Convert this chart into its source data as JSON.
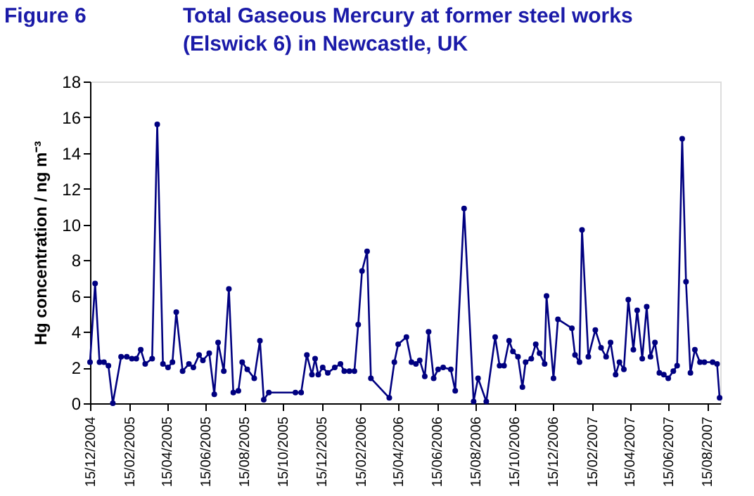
{
  "chart_data": {
    "type": "line",
    "title": "Total Gaseous Mercury at former steel works\n(Elswick 6) in Newcastle, UK",
    "annotations": [
      "Figure 6"
    ],
    "ylabel": "Hg concentration / ng m⁻³",
    "marker": "circle",
    "line_style": "solid",
    "grid": false,
    "legend": false,
    "xlim": [
      "2004-12-15",
      "2007-09-05"
    ],
    "xticks": [
      {
        "value": "2004-12-15",
        "label": "15/12/2004"
      },
      {
        "value": "2005-02-15",
        "label": "15/02/2005"
      },
      {
        "value": "2005-04-15",
        "label": "15/04/2005"
      },
      {
        "value": "2005-06-15",
        "label": "15/06/2005"
      },
      {
        "value": "2005-08-15",
        "label": "15/08/2005"
      },
      {
        "value": "2005-10-15",
        "label": "15/10/2005"
      },
      {
        "value": "2005-12-15",
        "label": "15/12/2005"
      },
      {
        "value": "2006-02-15",
        "label": "15/02/2006"
      },
      {
        "value": "2006-04-15",
        "label": "15/04/2006"
      },
      {
        "value": "2006-06-15",
        "label": "15/06/2006"
      },
      {
        "value": "2006-08-15",
        "label": "15/08/2006"
      },
      {
        "value": "2006-10-15",
        "label": "15/10/2006"
      },
      {
        "value": "2006-12-15",
        "label": "15/12/2006"
      },
      {
        "value": "2007-02-15",
        "label": "15/02/2007"
      },
      {
        "value": "2007-04-15",
        "label": "15/04/2007"
      },
      {
        "value": "2007-06-15",
        "label": "15/06/2007"
      },
      {
        "value": "2007-08-15",
        "label": "15/08/2007"
      }
    ],
    "ylim": [
      0,
      18
    ],
    "yticks": [
      0,
      2,
      4,
      6,
      8,
      10,
      12,
      14,
      16,
      18
    ],
    "x": [
      "2004-12-15",
      "2004-12-23",
      "2004-12-30",
      "2005-01-06",
      "2005-01-13",
      "2005-01-20",
      "2005-02-02",
      "2005-02-11",
      "2005-02-19",
      "2005-02-26",
      "2005-03-05",
      "2005-03-12",
      "2005-03-23",
      "2005-03-31",
      "2005-04-09",
      "2005-04-17",
      "2005-04-24",
      "2005-04-30",
      "2005-05-10",
      "2005-05-20",
      "2005-05-27",
      "2005-06-05",
      "2005-06-11",
      "2005-06-21",
      "2005-06-29",
      "2005-07-05",
      "2005-07-14",
      "2005-07-22",
      "2005-07-29",
      "2005-08-06",
      "2005-08-12",
      "2005-08-20",
      "2005-08-31",
      "2005-09-09",
      "2005-09-15",
      "2005-09-23",
      "2005-11-04",
      "2005-11-13",
      "2005-11-22",
      "2005-11-30",
      "2005-12-05",
      "2005-12-10",
      "2005-12-17",
      "2005-12-25",
      "2006-01-05",
      "2006-01-14",
      "2006-01-20",
      "2006-01-28",
      "2006-02-05",
      "2006-02-11",
      "2006-02-17",
      "2006-02-25",
      "2006-03-03",
      "2006-04-01",
      "2006-04-09",
      "2006-04-15",
      "2006-04-28",
      "2006-05-06",
      "2006-05-13",
      "2006-05-19",
      "2006-05-27",
      "2006-06-02",
      "2006-06-10",
      "2006-06-17",
      "2006-06-25",
      "2006-07-07",
      "2006-07-14",
      "2006-07-28",
      "2006-08-12",
      "2006-08-19",
      "2006-09-01",
      "2006-09-15",
      "2006-09-22",
      "2006-09-29",
      "2006-10-07",
      "2006-10-13",
      "2006-10-21",
      "2006-10-28",
      "2006-11-02",
      "2006-11-11",
      "2006-11-18",
      "2006-11-24",
      "2006-12-02",
      "2006-12-05",
      "2006-12-16",
      "2006-12-23",
      "2007-01-14",
      "2007-01-19",
      "2007-01-26",
      "2007-01-30",
      "2007-02-09",
      "2007-02-20",
      "2007-03-01",
      "2007-03-09",
      "2007-03-16",
      "2007-03-24",
      "2007-03-30",
      "2007-04-06",
      "2007-04-13",
      "2007-04-21",
      "2007-04-27",
      "2007-05-05",
      "2007-05-12",
      "2007-05-18",
      "2007-05-25",
      "2007-06-01",
      "2007-06-08",
      "2007-06-15",
      "2007-06-23",
      "2007-06-29",
      "2007-07-07",
      "2007-07-13",
      "2007-07-20",
      "2007-07-27",
      "2007-08-04",
      "2007-08-11",
      "2007-08-24",
      "2007-08-31",
      "2007-09-04"
    ],
    "series": [
      {
        "color": "#000080",
        "values": [
          2.3,
          6.7,
          2.3,
          2.3,
          2.1,
          0.0,
          2.6,
          2.6,
          2.5,
          2.5,
          3.0,
          2.2,
          2.5,
          15.6,
          2.2,
          2.0,
          2.3,
          5.1,
          1.8,
          2.2,
          2.0,
          2.7,
          2.4,
          2.8,
          0.5,
          3.4,
          1.8,
          6.4,
          0.6,
          0.7,
          2.3,
          1.9,
          1.4,
          3.5,
          0.2,
          0.6,
          0.6,
          0.6,
          2.7,
          1.6,
          2.5,
          1.6,
          2.0,
          1.7,
          2.0,
          2.2,
          1.8,
          1.8,
          1.8,
          4.4,
          7.4,
          8.5,
          1.4,
          0.3,
          2.3,
          3.3,
          3.7,
          2.3,
          2.2,
          2.4,
          1.5,
          4.0,
          1.4,
          1.9,
          2.0,
          1.9,
          0.7,
          10.9,
          0.1,
          1.4,
          0.1,
          3.7,
          2.1,
          2.1,
          3.5,
          2.9,
          2.6,
          0.9,
          2.3,
          2.5,
          3.3,
          2.8,
          2.2,
          6.0,
          1.4,
          4.7,
          4.2,
          2.7,
          2.3,
          9.7,
          2.6,
          4.1,
          3.1,
          2.6,
          3.4,
          1.6,
          2.3,
          1.9,
          5.8,
          3.0,
          5.2,
          2.5,
          5.4,
          2.6,
          3.4,
          1.7,
          1.6,
          1.4,
          1.8,
          2.1,
          14.8,
          6.8,
          1.7,
          3.0,
          2.3,
          2.3,
          2.3,
          2.2,
          0.3
        ]
      }
    ]
  }
}
